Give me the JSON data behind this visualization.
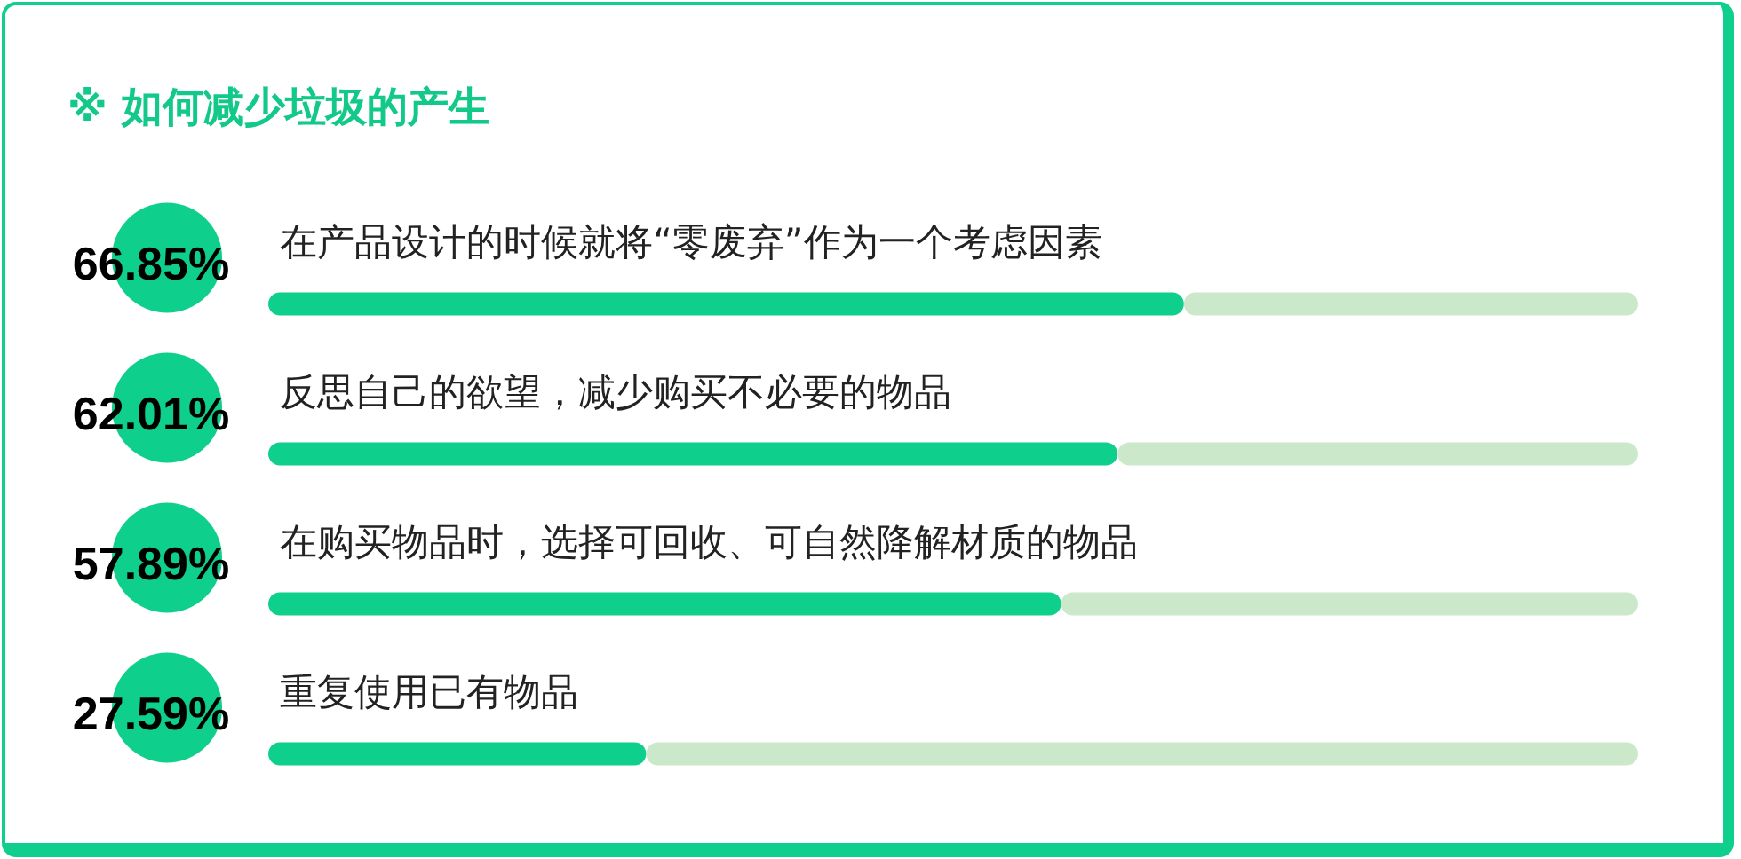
{
  "chart_data": {
    "type": "bar",
    "orientation": "horizontal",
    "stacked": true,
    "title": "※ 如何减少垃圾的产生",
    "categories": [
      "在产品设计的时候就将“零废弃”作为一个考虑因素",
      "反思自己的欲望，减少购买不必要的物品",
      "在购买物品时，选择可回收、可自然降解材质的物品",
      "重复使用已有物品"
    ],
    "series": [
      {
        "color": "#0fcf8c",
        "values": [
          66.85,
          62.01,
          57.89,
          27.59
        ],
        "value_labels": [
          "66.85%",
          "62.01%",
          "57.89%",
          "27.59%"
        ]
      },
      {
        "color": "#cbe8cb",
        "values": [
          33.15,
          37.99,
          42.11,
          72.41
        ]
      }
    ],
    "xlim": [
      0,
      100
    ],
    "tick_labels": "y"
  }
}
